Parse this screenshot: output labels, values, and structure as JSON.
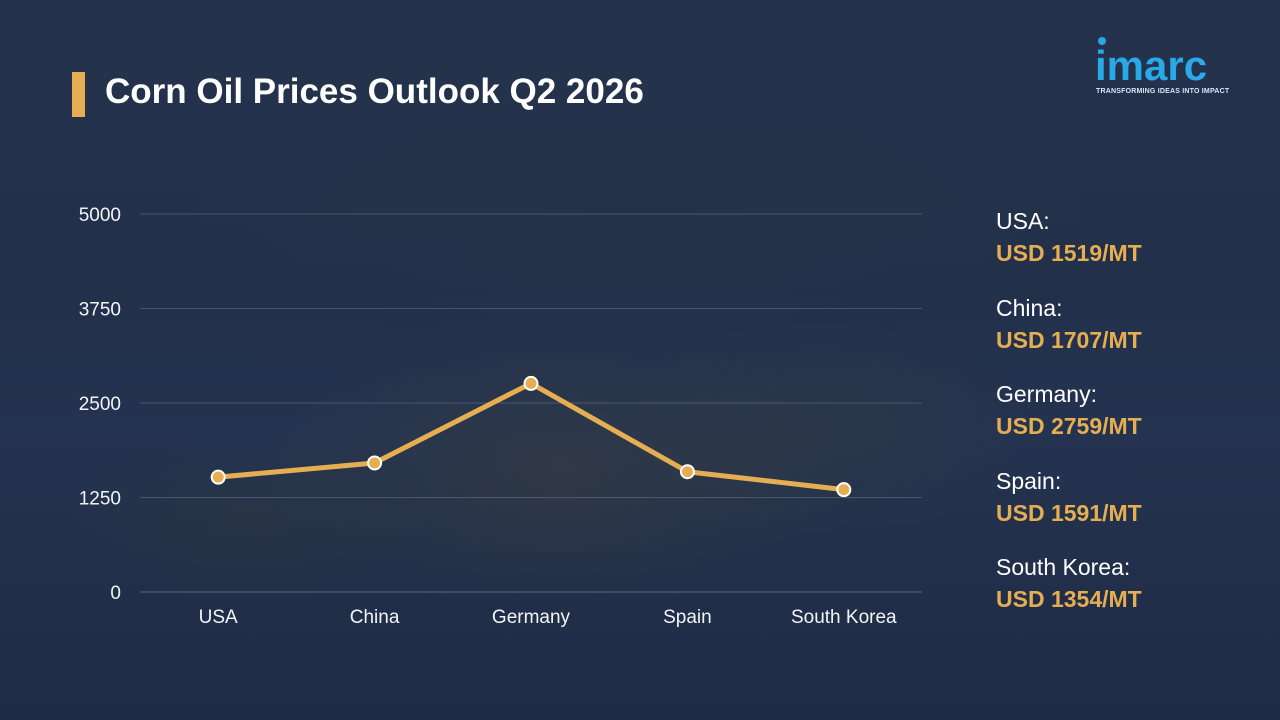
{
  "title": "Corn Oil Prices Outlook Q2 2026",
  "logo": {
    "name": "imarc",
    "tagline": "TRANSFORMING IDEAS INTO IMPACT"
  },
  "colors": {
    "accent": "#e5ae52",
    "brand_blue": "#2aa9e8",
    "background": "#22304a"
  },
  "chart_data": {
    "type": "line",
    "title": "Corn Oil Prices Outlook Q2 2026",
    "categories": [
      "USA",
      "China",
      "Germany",
      "Spain",
      "South Korea"
    ],
    "series": [
      {
        "values": [
          1519,
          1707,
          2759,
          1591,
          1354
        ]
      }
    ],
    "xlabel": "",
    "ylabel": "",
    "ylim": [
      0,
      5000
    ],
    "yticks": [
      "0",
      "1250",
      "2500",
      "3750",
      "5000"
    ],
    "grid": true,
    "line_color": "#e5ae52"
  },
  "side_panel": [
    {
      "country": "USA:",
      "price": "USD 1519/MT"
    },
    {
      "country": "China:",
      "price": "USD 1707/MT"
    },
    {
      "country": "Germany:",
      "price": "USD 2759/MT"
    },
    {
      "country": "Spain:",
      "price": "USD 1591/MT"
    },
    {
      "country": "South Korea:",
      "price": "USD 1354/MT"
    }
  ]
}
